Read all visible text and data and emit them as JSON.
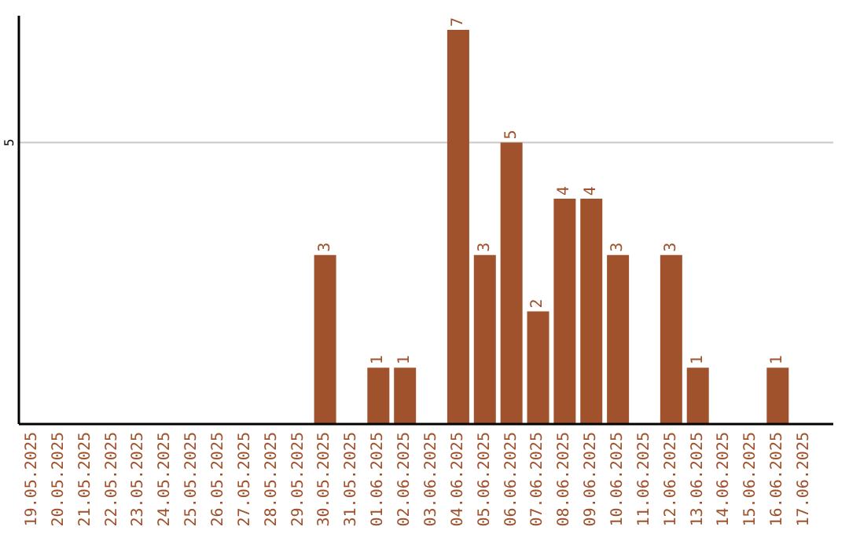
{
  "chart_data": {
    "type": "bar",
    "categories": [
      "19.05.2025",
      "20.05.2025",
      "21.05.2025",
      "22.05.2025",
      "23.05.2025",
      "24.05.2025",
      "25.05.2025",
      "26.05.2025",
      "27.05.2025",
      "28.05.2025",
      "29.05.2025",
      "30.05.2025",
      "31.05.2025",
      "01.06.2025",
      "02.06.2025",
      "03.06.2025",
      "04.06.2025",
      "05.06.2025",
      "06.06.2025",
      "07.06.2025",
      "08.06.2025",
      "09.06.2025",
      "10.06.2025",
      "11.06.2025",
      "12.06.2025",
      "13.06.2025",
      "14.06.2025",
      "15.06.2025",
      "16.06.2025",
      "17.06.2025"
    ],
    "values": [
      0,
      0,
      0,
      0,
      0,
      0,
      0,
      0,
      0,
      0,
      0,
      3,
      0,
      1,
      1,
      0,
      7,
      3,
      5,
      2,
      4,
      4,
      3,
      0,
      3,
      1,
      0,
      0,
      1,
      0
    ],
    "value_labels": [
      null,
      null,
      null,
      null,
      null,
      null,
      null,
      null,
      null,
      null,
      null,
      "3",
      null,
      "1",
      "1",
      null,
      "7",
      "3",
      "5",
      "2",
      "4",
      "4",
      "3",
      null,
      "3",
      "1",
      null,
      null,
      "1",
      null
    ],
    "color": "#a0522d",
    "ylim": [
      0,
      7.25
    ],
    "yticks": [
      5
    ],
    "grid": "y"
  }
}
